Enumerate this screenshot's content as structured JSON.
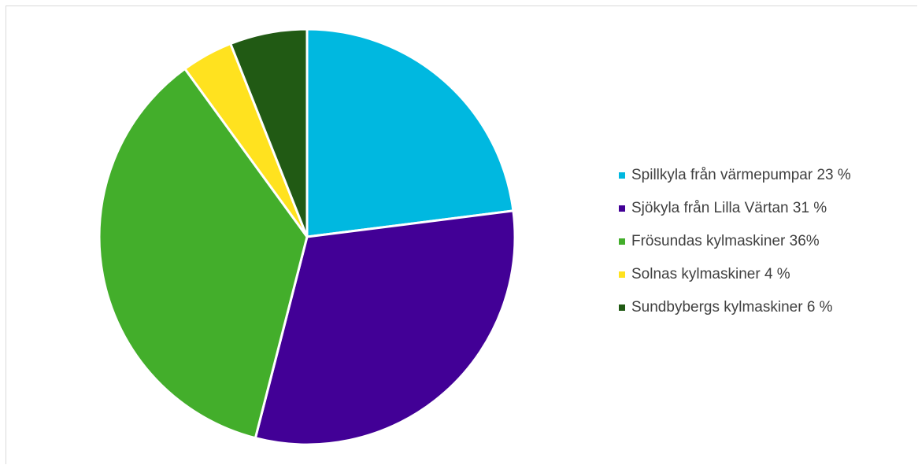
{
  "chart_data": {
    "type": "pie",
    "title": "",
    "start_angle_deg": 0,
    "direction": "clockwise",
    "legend_position": "right",
    "slices": [
      {
        "label": "Spillkyla från värmepumpar 23 %",
        "value": 23,
        "color": "#00B8E0"
      },
      {
        "label": "Sjökyla från Lilla Värtan 31 %",
        "value": 31,
        "color": "#420096"
      },
      {
        "label": "Frösundas kylmaskiner 36%",
        "value": 36,
        "color": "#43AE2B"
      },
      {
        "label": "Solnas kylmaskiner 4 %",
        "value": 4,
        "color": "#FFE21F"
      },
      {
        "label": "Sundbybergs kylmaskiner 6 %",
        "value": 6,
        "color": "#215A14"
      }
    ]
  }
}
